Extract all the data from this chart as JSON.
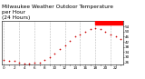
{
  "title": "Milwaukee Weather Outdoor Temperature\nper Hour\n(24 Hours)",
  "hours": [
    0,
    1,
    2,
    3,
    4,
    5,
    6,
    7,
    8,
    9,
    10,
    11,
    12,
    13,
    14,
    15,
    16,
    17,
    18,
    19,
    20,
    21,
    22,
    23
  ],
  "temps": [
    28,
    27,
    27,
    26,
    25,
    25,
    26,
    26,
    28,
    30,
    33,
    36,
    39,
    43,
    46,
    48,
    50,
    52,
    53,
    52,
    50,
    48,
    46,
    44
  ],
  "dot_color": "#cc0000",
  "highlight_color": "#ff0000",
  "background_color": "#ffffff",
  "grid_color": "#bbbbbb",
  "ylim": [
    24,
    58
  ],
  "xlim": [
    -0.5,
    23.5
  ],
  "highlight_start_hour": 18,
  "title_fontsize": 4.2,
  "tick_fontsize": 3.0,
  "ytick_right": true
}
